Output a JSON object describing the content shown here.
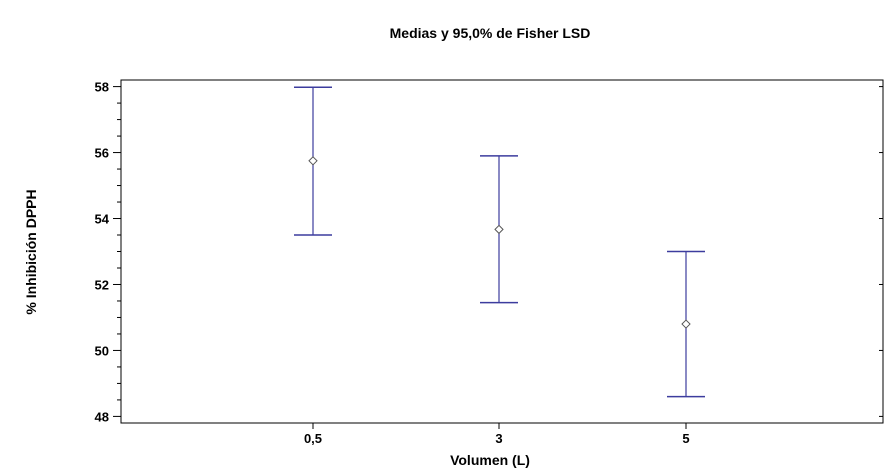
{
  "chart_data": {
    "type": "scatter",
    "title": "Medias y 95,0% de Fisher LSD",
    "xlabel": "Volumen (L)",
    "ylabel": "% Inhibición DPPH",
    "categories": [
      "0,5",
      "3",
      "5"
    ],
    "ylim": [
      47.8,
      58.2
    ],
    "yticks": [
      48,
      50,
      52,
      54,
      56,
      58
    ],
    "ytick_labels": [
      "48",
      "50",
      "52",
      "54",
      "56",
      "58"
    ],
    "series": [
      {
        "means": [
          55.75,
          53.67,
          50.8
        ],
        "lower": [
          53.5,
          51.45,
          48.6
        ],
        "upper": [
          57.98,
          55.9,
          53.0
        ]
      }
    ],
    "grid": false,
    "legend": "none",
    "colors": {
      "interval": "#3c3c9e",
      "marker": "#555555",
      "axis": "#000000"
    }
  }
}
